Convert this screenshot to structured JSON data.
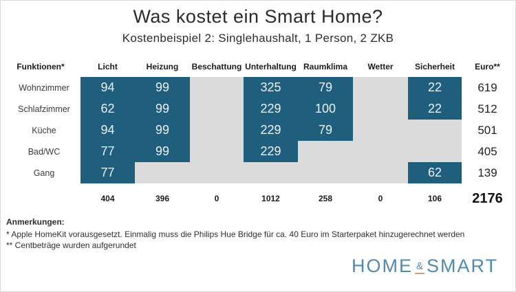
{
  "header": {
    "title": "Was kostet ein Smart Home?",
    "subtitle": "Kostenbeispiel 2: Singlehaushalt, 1 Person, 2 ZKB"
  },
  "table": {
    "column_headers": [
      "Funktionen*",
      "Licht",
      "Heizung",
      "Beschattung",
      "Unterhaltung",
      "Raumklima",
      "Wetter",
      "Sicherheit",
      "Euro**"
    ],
    "rows": [
      {
        "label": "Wohnzimmer",
        "values": [
          "94",
          "99",
          "",
          "325",
          "79",
          "",
          "22"
        ],
        "euro": "619"
      },
      {
        "label": "Schlafzimmer",
        "values": [
          "62",
          "99",
          "",
          "229",
          "100",
          "",
          "22"
        ],
        "euro": "512"
      },
      {
        "label": "Küche",
        "values": [
          "94",
          "99",
          "",
          "229",
          "79",
          "",
          ""
        ],
        "euro": "501"
      },
      {
        "label": "Bad/WC",
        "values": [
          "77",
          "99",
          "",
          "229",
          "",
          "",
          ""
        ],
        "euro": "405"
      },
      {
        "label": "Gang",
        "values": [
          "77",
          "",
          "",
          "",
          "",
          "",
          "62"
        ],
        "euro": "139"
      }
    ],
    "totals": [
      "404",
      "396",
      "0",
      "1012",
      "258",
      "0",
      "106"
    ],
    "total_euro": "2176"
  },
  "notes": {
    "heading": "Anmerkungen:",
    "items": [
      "* Apple HomeKit vorausgesetzt. Einmalig muss die Philips Hue Bridge für ca. 40 Euro im Starterpaket hinzugerechnet werden",
      "** Centbeträge wurden aufgerundet"
    ]
  },
  "logo": {
    "part1": "HOME",
    "amp": "&",
    "part2": "SMART"
  },
  "colors": {
    "cell_filled": "#205e7e",
    "cell_empty": "#dbdbdb",
    "logo_blue": "#4d8bb0",
    "logo_underline": "#c4a07b"
  },
  "chart_data": {
    "type": "table",
    "title": "Was kostet ein Smart Home?",
    "subtitle": "Kostenbeispiel 2: Singlehaushalt, 1 Person, 2 ZKB",
    "columns": [
      "Licht",
      "Heizung",
      "Beschattung",
      "Unterhaltung",
      "Raumklima",
      "Wetter",
      "Sicherheit"
    ],
    "row_labels": [
      "Wohnzimmer",
      "Schlafzimmer",
      "Küche",
      "Bad/WC",
      "Gang"
    ],
    "values": [
      [
        94,
        99,
        null,
        325,
        79,
        null,
        22
      ],
      [
        62,
        99,
        null,
        229,
        100,
        null,
        22
      ],
      [
        94,
        99,
        null,
        229,
        79,
        null,
        null
      ],
      [
        77,
        99,
        null,
        229,
        null,
        null,
        null
      ],
      [
        77,
        null,
        null,
        null,
        null,
        null,
        62
      ]
    ],
    "row_totals_euro": [
      619,
      512,
      501,
      405,
      139
    ],
    "column_totals": [
      404,
      396,
      0,
      1012,
      258,
      0,
      106
    ],
    "grand_total_euro": 2176,
    "legend_position": "none",
    "unit": "Euro"
  }
}
